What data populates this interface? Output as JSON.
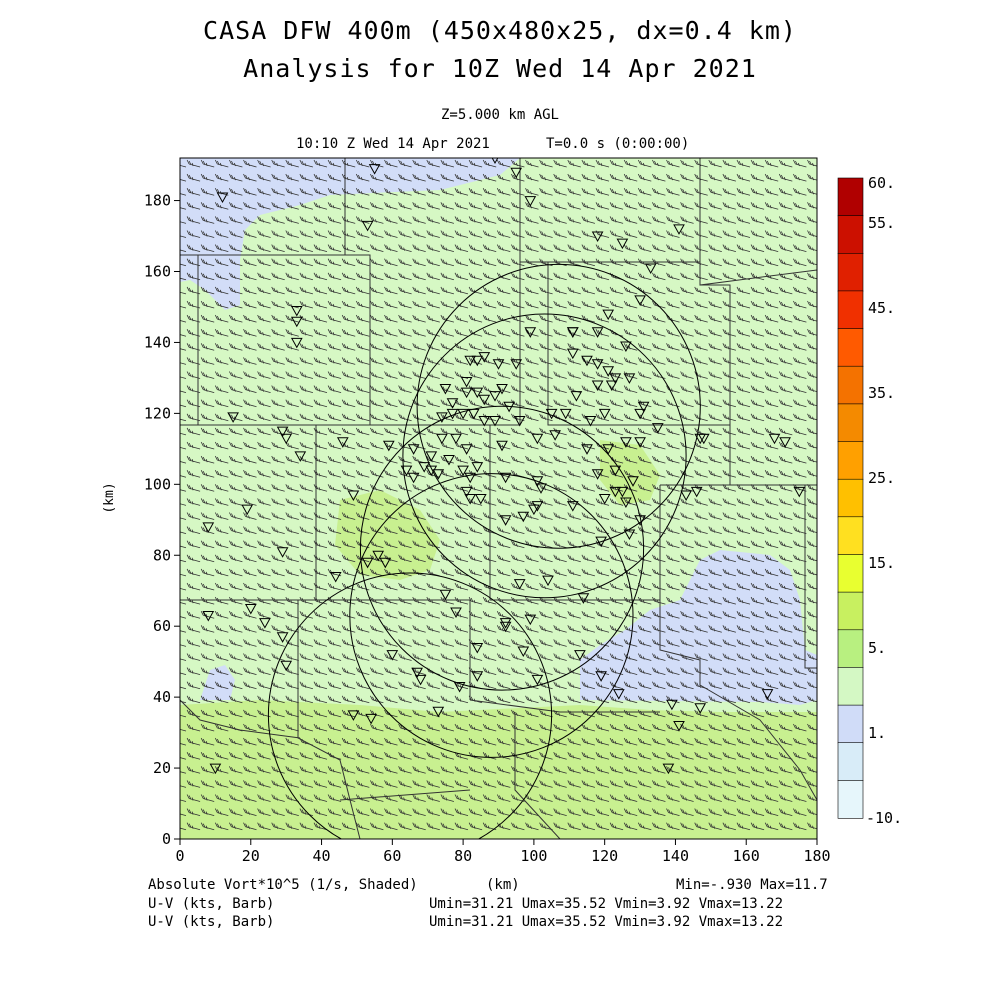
{
  "header": {
    "title_line1": "CASA DFW 400m (450x480x25, dx=0.4 km)",
    "title_line2": "Analysis for 10Z Wed 14 Apr 2021",
    "level": "Z=5.000 km AGL",
    "time": "10:10 Z Wed 14 Apr 2021",
    "model_time": "T=0.0 s (0:00:00)"
  },
  "footer": {
    "field_label": "Absolute Vort*10^5 (1/s, Shaded)",
    "x_unit_label": "(km)",
    "minmax": "Min=-.930 Max=11.7",
    "barb_label_1": "U-V (kts, Barb)",
    "barb_label_2": "U-V (kts, Barb)",
    "barb_stats_1": "Umin=31.21 Umax=35.52 Vmin=3.92 Vmax=13.22",
    "barb_stats_2": "Umin=31.21 Umax=35.52 Vmin=3.92 Vmax=13.22"
  },
  "chart_data": {
    "type": "heatmap",
    "xlabel": "",
    "ylabel": "(km)",
    "xlim": [
      0,
      180
    ],
    "ylim": [
      0,
      192
    ],
    "x_ticks": [
      "0",
      "20",
      "40",
      "60",
      "80",
      "100",
      "120",
      "140",
      "160",
      "180"
    ],
    "y_ticks": [
      "0",
      "20",
      "40",
      "60",
      "80",
      "100",
      "120",
      "140",
      "160",
      "180"
    ],
    "colorbar": {
      "labels": [
        "60.",
        "55.",
        "45.",
        "35.",
        "25.",
        "15.",
        "5.",
        "1.",
        "-10."
      ],
      "colors": [
        "#b00000",
        "#cc1000",
        "#e02000",
        "#f03000",
        "#ff5a00",
        "#f47200",
        "#f48a00",
        "#ffa000",
        "#ffc000",
        "#ffe020",
        "#e8ff30",
        "#c8f060",
        "#b8f080",
        "#d4f8c4",
        "#d0dcf8",
        "#d8ecf8",
        "#e6f6fb"
      ]
    },
    "field_colors": {
      "low": "#d2ddf8",
      "mid": "#d6f8c4",
      "high": "#c8f090"
    },
    "wind": {
      "u_range_kts": [
        31.21,
        35.52
      ],
      "v_range_kts": [
        3.92,
        13.22
      ]
    },
    "field_stats": {
      "min": -0.93,
      "max": 11.7
    },
    "radars": [
      {
        "x_km": 65,
        "y_km": 35,
        "range_km": 40
      },
      {
        "x_km": 88,
        "y_km": 63,
        "range_km": 40
      },
      {
        "x_km": 91,
        "y_km": 82,
        "range_km": 40
      },
      {
        "x_km": 103,
        "y_km": 108,
        "range_km": 40
      },
      {
        "x_km": 107,
        "y_km": 122,
        "range_km": 40
      }
    ],
    "stations": [
      [
        55,
        189
      ],
      [
        89,
        192
      ],
      [
        95,
        188
      ],
      [
        12,
        181
      ],
      [
        99,
        180
      ],
      [
        53,
        173
      ],
      [
        141,
        172
      ],
      [
        118,
        170
      ],
      [
        125,
        168
      ],
      [
        133,
        161
      ],
      [
        130,
        152
      ],
      [
        121,
        148
      ],
      [
        126,
        139
      ],
      [
        118,
        143
      ],
      [
        111,
        143
      ],
      [
        99,
        143
      ],
      [
        111,
        143
      ],
      [
        111,
        137
      ],
      [
        115,
        135
      ],
      [
        118,
        134
      ],
      [
        121,
        132
      ],
      [
        82,
        135
      ],
      [
        84,
        135
      ],
      [
        86,
        136
      ],
      [
        90,
        134
      ],
      [
        95,
        134
      ],
      [
        81,
        129
      ],
      [
        81,
        126
      ],
      [
        84,
        126
      ],
      [
        86,
        124
      ],
      [
        89,
        125
      ],
      [
        91,
        127
      ],
      [
        75,
        127
      ],
      [
        77,
        123
      ],
      [
        74,
        119
      ],
      [
        77,
        120
      ],
      [
        80,
        120
      ],
      [
        83,
        120
      ],
      [
        86,
        118
      ],
      [
        89,
        118
      ],
      [
        93,
        122
      ],
      [
        96,
        118
      ],
      [
        105,
        120
      ],
      [
        109,
        120
      ],
      [
        112,
        125
      ],
      [
        118,
        128
      ],
      [
        122,
        128
      ],
      [
        123,
        130
      ],
      [
        127,
        130
      ],
      [
        130,
        120
      ],
      [
        131,
        122
      ],
      [
        120,
        120
      ],
      [
        116,
        118
      ],
      [
        106,
        114
      ],
      [
        101,
        113
      ],
      [
        91,
        111
      ],
      [
        81,
        110
      ],
      [
        74,
        113
      ],
      [
        78,
        113
      ],
      [
        66,
        110
      ],
      [
        64,
        104
      ],
      [
        66,
        102
      ],
      [
        69,
        105
      ],
      [
        71,
        104
      ],
      [
        73,
        103
      ],
      [
        76,
        107
      ],
      [
        80,
        104
      ],
      [
        82,
        102
      ],
      [
        84,
        105
      ],
      [
        92,
        102
      ],
      [
        101,
        101
      ],
      [
        102,
        99
      ],
      [
        118,
        103
      ],
      [
        123,
        104
      ],
      [
        128,
        101
      ],
      [
        125,
        98
      ],
      [
        123,
        98
      ],
      [
        126,
        95
      ],
      [
        120,
        96
      ],
      [
        115,
        110
      ],
      [
        121,
        110
      ],
      [
        126,
        112
      ],
      [
        130,
        112
      ],
      [
        135,
        116
      ],
      [
        147,
        113
      ],
      [
        148,
        113
      ],
      [
        168,
        113
      ],
      [
        171,
        112
      ],
      [
        143,
        97
      ],
      [
        146,
        98
      ],
      [
        175,
        98
      ],
      [
        119,
        84
      ],
      [
        127,
        86
      ],
      [
        130,
        90
      ],
      [
        82,
        96
      ],
      [
        81,
        98
      ],
      [
        85,
        96
      ],
      [
        92,
        90
      ],
      [
        97,
        91
      ],
      [
        100,
        93
      ],
      [
        101,
        94
      ],
      [
        111,
        94
      ],
      [
        96,
        72
      ],
      [
        104,
        73
      ],
      [
        114,
        68
      ],
      [
        99,
        62
      ],
      [
        92,
        60
      ],
      [
        84,
        54
      ],
      [
        84,
        46
      ],
      [
        79,
        43
      ],
      [
        68,
        45
      ],
      [
        67,
        47
      ],
      [
        60,
        52
      ],
      [
        29,
        57
      ],
      [
        24,
        61
      ],
      [
        20,
        65
      ],
      [
        8,
        63
      ],
      [
        8,
        88
      ],
      [
        29,
        81
      ],
      [
        19,
        93
      ],
      [
        49,
        97
      ],
      [
        56,
        80
      ],
      [
        58,
        78
      ],
      [
        53,
        78
      ],
      [
        44,
        74
      ],
      [
        30,
        49
      ],
      [
        29,
        115
      ],
      [
        34,
        108
      ],
      [
        30,
        113
      ],
      [
        10,
        20
      ],
      [
        33,
        140
      ],
      [
        33,
        146
      ],
      [
        33,
        149
      ],
      [
        15,
        119
      ],
      [
        46,
        112
      ],
      [
        59,
        111
      ],
      [
        71,
        108
      ],
      [
        75,
        69
      ],
      [
        78,
        64
      ],
      [
        92,
        61
      ],
      [
        97,
        53
      ],
      [
        101,
        45
      ],
      [
        113,
        52
      ],
      [
        119,
        46
      ],
      [
        124,
        41
      ],
      [
        139,
        38
      ],
      [
        141,
        32
      ],
      [
        147,
        37
      ],
      [
        166,
        41
      ],
      [
        73,
        36
      ],
      [
        54,
        34
      ],
      [
        49,
        35
      ],
      [
        138,
        20
      ]
    ]
  }
}
